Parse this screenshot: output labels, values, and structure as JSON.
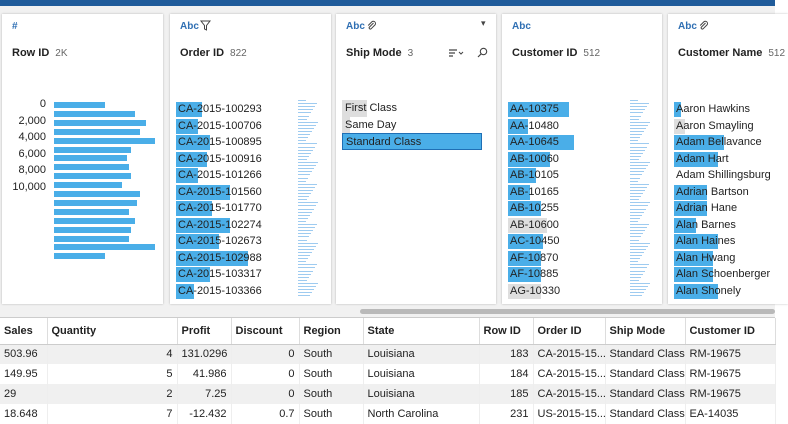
{
  "colors": {
    "accent": "#4aaee8",
    "topbar": "#1f5b9a",
    "type_label": "#2f6fb3"
  },
  "cards": {
    "rowid": {
      "type": "#",
      "name": "Row ID",
      "count": "2K",
      "ticks": [
        "0",
        "2,000",
        "4,000",
        "6,000",
        "8,000",
        "10,000"
      ],
      "bar_values": [
        0.46,
        0.74,
        0.84,
        0.78,
        0.92,
        0.7,
        0.66,
        0.68,
        0.7,
        0.62,
        0.78,
        0.75,
        0.68,
        0.74,
        0.7,
        0.68,
        0.92,
        0.46
      ]
    },
    "orderid": {
      "type": "Abc",
      "name": "Order ID",
      "count": "822",
      "values": [
        {
          "label": "CA-2015-100293",
          "fill": 0.22
        },
        {
          "label": "CA-2015-100706",
          "fill": 0.18
        },
        {
          "label": "CA-2015-100895",
          "fill": 0.28
        },
        {
          "label": "CA-2015-100916",
          "fill": 0.26
        },
        {
          "label": "CA-2015-101266",
          "fill": 0.18
        },
        {
          "label": "CA-2015-101560",
          "fill": 0.45
        },
        {
          "label": "CA-2015-101770",
          "fill": 0.3
        },
        {
          "label": "CA-2015-102274",
          "fill": 0.45
        },
        {
          "label": "CA-2015-102673",
          "fill": 0.36
        },
        {
          "label": "CA-2015-102988",
          "fill": 0.6
        },
        {
          "label": "CA-2015-103317",
          "fill": 0.28
        },
        {
          "label": "CA-2015-103366",
          "fill": 0.15
        }
      ]
    },
    "shipmode": {
      "type": "Abc",
      "name": "Ship Mode",
      "count": "3",
      "values": [
        {
          "label": "First Class",
          "fill": 0.18,
          "selected": false
        },
        {
          "label": "Same Day",
          "fill": 0.06,
          "selected": false
        },
        {
          "label": "Standard Class",
          "fill": 0.6,
          "selected": true
        }
      ]
    },
    "customerid": {
      "type": "Abc",
      "name": "Customer ID",
      "count": "512",
      "values": [
        {
          "label": "AA-10375",
          "fill": 0.55,
          "gray": false
        },
        {
          "label": "AA-10480",
          "fill": 0.18,
          "gray": false
        },
        {
          "label": "AA-10645",
          "fill": 0.6,
          "gray": false
        },
        {
          "label": "AB-10060",
          "fill": 0.38,
          "gray": false
        },
        {
          "label": "AB-10105",
          "fill": 0.25,
          "gray": false
        },
        {
          "label": "AB-10165",
          "fill": 0.2,
          "gray": false
        },
        {
          "label": "AB-10255",
          "fill": 0.3,
          "gray": false
        },
        {
          "label": "AB-10600",
          "fill": 0.35,
          "gray": true
        },
        {
          "label": "AC-10450",
          "fill": 0.32,
          "gray": false
        },
        {
          "label": "AF-10870",
          "fill": 0.3,
          "gray": false
        },
        {
          "label": "AF-10885",
          "fill": 0.3,
          "gray": false
        },
        {
          "label": "AG-10330",
          "fill": 0.3,
          "gray": true
        }
      ]
    },
    "customername": {
      "type": "Abc",
      "name": "Customer Name",
      "count": "512",
      "values": [
        {
          "label": "Aaron Hawkins",
          "fill": 0.06,
          "gray": false
        },
        {
          "label": "Aaron Smayling",
          "fill": 0.1,
          "gray": true
        },
        {
          "label": "Adam Bellavance",
          "fill": 0.45,
          "gray": false
        },
        {
          "label": "Adam Hart",
          "fill": 0.4,
          "gray": false
        },
        {
          "label": "Adam Shillingsburg",
          "fill": 0.0,
          "gray": false
        },
        {
          "label": "Adrian Bartson",
          "fill": 0.3,
          "gray": false
        },
        {
          "label": "Adrian Hane",
          "fill": 0.3,
          "gray": false
        },
        {
          "label": "Alan Barnes",
          "fill": 0.2,
          "gray": false
        },
        {
          "label": "Alan Haines",
          "fill": 0.4,
          "gray": false
        },
        {
          "label": "Alan Hwang",
          "fill": 0.35,
          "gray": false
        },
        {
          "label": "Alan Schoenberger",
          "fill": 0.35,
          "gray": false
        },
        {
          "label": "Alan Shonely",
          "fill": 0.4,
          "gray": false
        }
      ]
    }
  },
  "table": {
    "headers": [
      "Sales",
      "Quantity",
      "Profit",
      "Discount",
      "Region",
      "State",
      "Row ID",
      "Order ID",
      "Ship Mode",
      "Customer ID"
    ],
    "rows": [
      [
        "503.96",
        "4",
        "131.0296",
        "0",
        "South",
        "Louisiana",
        "183",
        "CA-2015-15...",
        "Standard Class",
        "RM-19675"
      ],
      [
        "149.95",
        "5",
        "41.986",
        "0",
        "South",
        "Louisiana",
        "184",
        "CA-2015-15...",
        "Standard Class",
        "RM-19675"
      ],
      [
        "29",
        "2",
        "7.25",
        "0",
        "South",
        "Louisiana",
        "185",
        "CA-2015-15...",
        "Standard Class",
        "RM-19675"
      ],
      [
        "18.648",
        "7",
        "-12.432",
        "0.7",
        "South",
        "North Carolina",
        "231",
        "US-2015-15...",
        "Standard Class",
        "EA-14035"
      ]
    ]
  }
}
